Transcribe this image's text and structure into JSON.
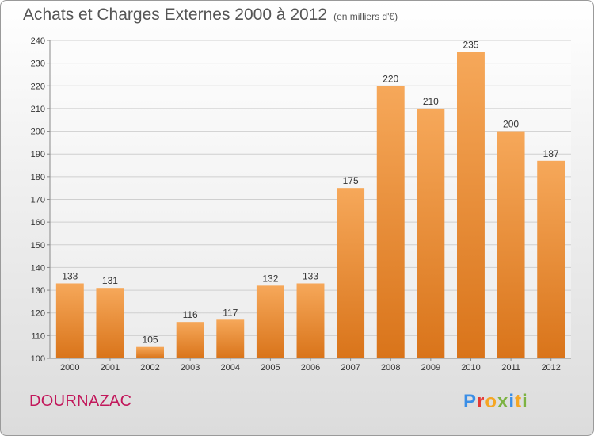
{
  "header": {
    "title": "Achats et Charges Externes 2000 à 2012",
    "subtitle": "(en milliers d'€)"
  },
  "footer": {
    "place": "DOURNAZAC",
    "brand": "Proxiti",
    "brand_colors": [
      "#3a8ee6",
      "#e53935",
      "#f5a623",
      "#7cb342",
      "#3a8ee6",
      "#f5a623",
      "#7cb342"
    ]
  },
  "colors": {
    "bar_light": "#f6a85a",
    "bar_dark": "#d9741a",
    "grid": "#cfcfcf"
  },
  "chart_data": {
    "type": "bar",
    "categories": [
      "2000",
      "2001",
      "2002",
      "2003",
      "2004",
      "2005",
      "2006",
      "2007",
      "2008",
      "2009",
      "2010",
      "2011",
      "2012"
    ],
    "values": [
      133,
      131,
      105,
      116,
      117,
      132,
      133,
      175,
      220,
      210,
      235,
      200,
      187
    ],
    "title": "Achats et Charges Externes 2000 à 2012",
    "subtitle": "(en milliers d'€)",
    "xlabel": "",
    "ylabel": "",
    "ylim": [
      100,
      240
    ],
    "yticks": [
      100,
      110,
      120,
      130,
      140,
      150,
      160,
      170,
      180,
      190,
      200,
      210,
      220,
      230,
      240
    ],
    "grid": true,
    "data_labels": true
  }
}
